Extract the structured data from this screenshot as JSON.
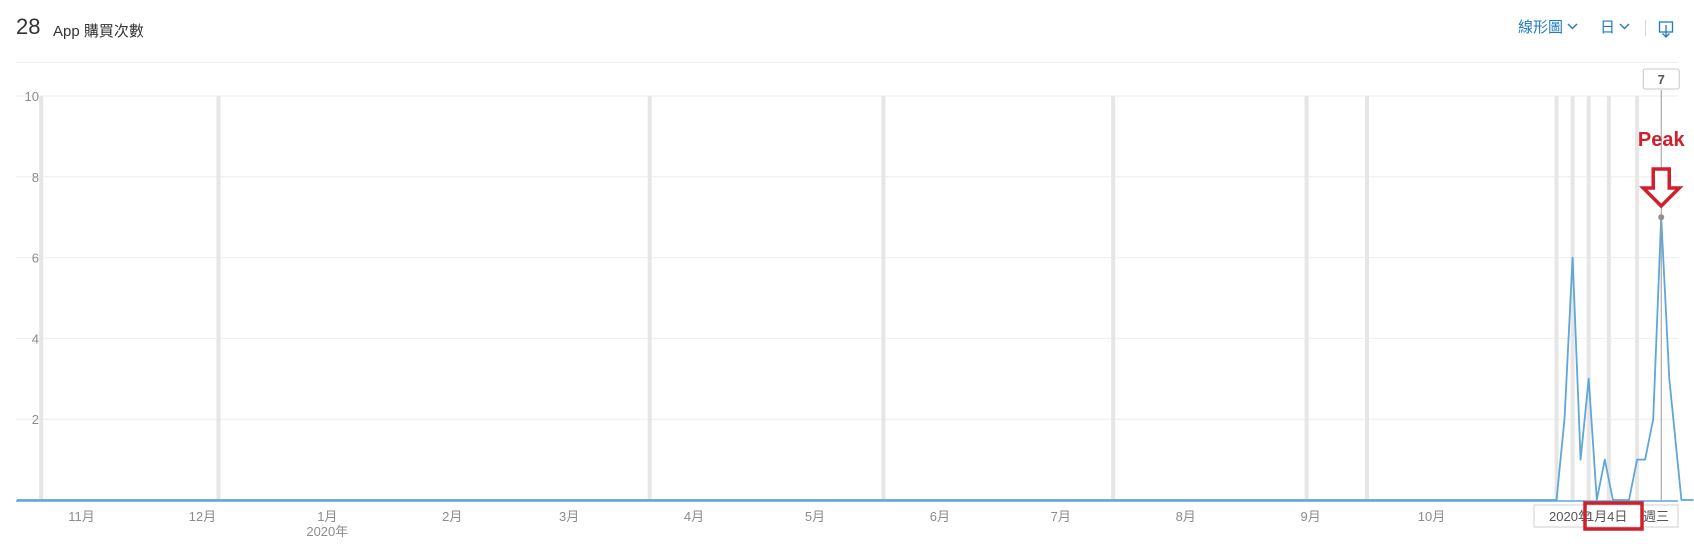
{
  "header": {
    "count": "28",
    "title": "App 購買次數",
    "chart_type_label": "線形圖",
    "granularity_label": "日"
  },
  "colors": {
    "line": "#5ea7d8",
    "accent": "#1f7bc1",
    "annotation": "#d0202d",
    "marker": "#e6e6e6",
    "grid": "#eeeeee"
  },
  "chart_data": {
    "type": "line",
    "y_ticks": [
      "10",
      "8",
      "6",
      "4",
      "2"
    ],
    "ylim": [
      0,
      10
    ],
    "x_ticks": [
      {
        "label": "11月",
        "day": 16
      },
      {
        "label": "12月",
        "day": 46
      },
      {
        "label": "1月",
        "sub": "2020年",
        "day": 77
      },
      {
        "label": "2月",
        "day": 108
      },
      {
        "label": "3月",
        "day": 137
      },
      {
        "label": "4月",
        "day": 168
      },
      {
        "label": "5月",
        "day": 198
      },
      {
        "label": "6月",
        "day": 229
      },
      {
        "label": "7月",
        "day": 259
      },
      {
        "label": "8月",
        "day": 290
      },
      {
        "label": "9月",
        "day": 321
      },
      {
        "label": "10月",
        "day": 351
      }
    ],
    "event_marker_days": [
      6,
      50,
      157,
      215,
      272,
      320,
      335,
      382,
      386,
      390,
      395,
      402
    ],
    "series": [
      {
        "points": [
          [
            0,
            0
          ],
          [
            382,
            0
          ],
          [
            384,
            2
          ],
          [
            386,
            6
          ],
          [
            388,
            1
          ],
          [
            390,
            3
          ],
          [
            392,
            0
          ],
          [
            394,
            1
          ],
          [
            396,
            0
          ],
          [
            400,
            0
          ],
          [
            402,
            1
          ],
          [
            404,
            1
          ],
          [
            406,
            2
          ],
          [
            408,
            7
          ],
          [
            410,
            3
          ],
          [
            412,
            1
          ],
          [
            413,
            0
          ],
          [
            416,
            0
          ]
        ]
      }
    ],
    "tooltip": {
      "value": "7",
      "day": 408
    },
    "hover_date": {
      "prefix": "2020年",
      "highlight": "11月4日",
      "suffix": "週三"
    },
    "annotation": {
      "text": "Peak",
      "day": 408
    }
  }
}
